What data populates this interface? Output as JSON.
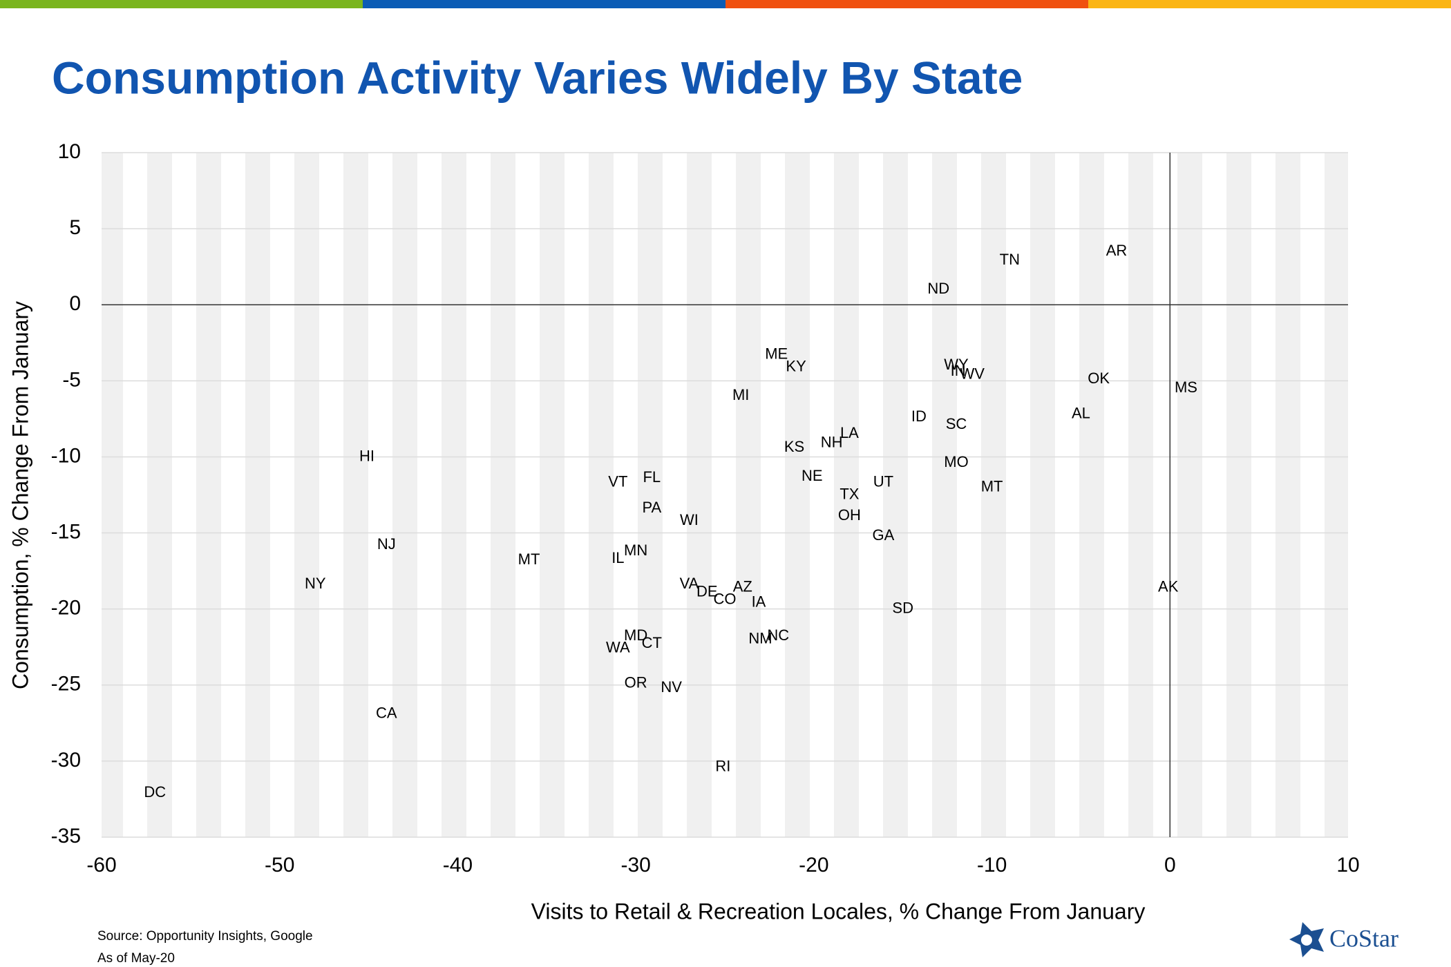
{
  "chart_data": {
    "type": "scatter",
    "title": "Consumption Activity Varies Widely By State",
    "x_label": "Visits to Retail & Recreation Locales, % Change From January",
    "y_label": "Consumption, % Change From January",
    "labels": [
      "AR",
      "TN",
      "ND",
      "ME",
      "KY",
      "WY",
      "IN",
      "WV",
      "OK",
      "MS",
      "MI",
      "ID",
      "AL",
      "SC",
      "LA",
      "NH",
      "KS",
      "HI",
      "MO",
      "NE",
      "UT",
      "VT",
      "FL",
      "MT",
      "TX",
      "PA",
      "OH",
      "WI",
      "GA",
      "NJ",
      "MT",
      "IL",
      "MN",
      "NY",
      "AK",
      "VA",
      "DE",
      "AZ",
      "CO",
      "IA",
      "SD",
      "NM",
      "NC",
      "MD",
      "WA",
      "CT",
      "OR",
      "NV",
      "CA",
      "RI",
      "DC"
    ],
    "x": [
      -3.0,
      -9.0,
      -13.0,
      -22.1,
      -21.0,
      -12.0,
      -11.9,
      -11.1,
      -4.0,
      0.9,
      -24.1,
      -14.1,
      -5.0,
      -12.0,
      -18.0,
      -19.0,
      -21.1,
      -45.1,
      -12.0,
      -20.1,
      -16.1,
      -31.0,
      -29.1,
      -10.0,
      -18.0,
      -29.1,
      -18.0,
      -27.0,
      -16.1,
      -44.0,
      -36.0,
      -31.0,
      -30.0,
      -48.0,
      -0.1,
      -27.0,
      -26.0,
      -24.0,
      -25.0,
      -23.1,
      -15.0,
      -23.0,
      -22.0,
      -30.0,
      -31.0,
      -29.1,
      -30.0,
      -28.0,
      -44.0,
      -25.1,
      -57.0
    ],
    "values": [
      3.5,
      2.9,
      1.0,
      -3.3,
      -4.1,
      -4.0,
      -4.4,
      -4.6,
      -4.9,
      -5.5,
      -6.0,
      -7.4,
      -7.2,
      -7.9,
      -8.5,
      -9.1,
      -9.4,
      -10.0,
      -10.4,
      -11.3,
      -11.7,
      -11.7,
      -11.4,
      -12.0,
      -12.5,
      -13.4,
      -13.9,
      -14.2,
      -15.2,
      -15.8,
      -16.8,
      -16.7,
      -16.2,
      -18.4,
      -18.6,
      -18.4,
      -18.9,
      -18.6,
      -19.4,
      -19.6,
      -20.0,
      -22.0,
      -21.8,
      -21.8,
      -22.6,
      -22.3,
      -24.9,
      -25.2,
      -26.9,
      -30.4,
      -32.1
    ],
    "xlim": [
      -60,
      10
    ],
    "xticks": [
      -60,
      -50,
      -40,
      -30,
      -20,
      -10,
      0,
      10
    ],
    "ylim": [
      -35,
      10
    ],
    "yticks": [
      -35,
      -30,
      -25,
      -20,
      -15,
      -10,
      -5,
      0,
      5,
      10
    ],
    "grid": true,
    "annotations": [
      "Source: Opportunity Insights, Google",
      "As of May-20"
    ]
  },
  "logo": "CoStar"
}
